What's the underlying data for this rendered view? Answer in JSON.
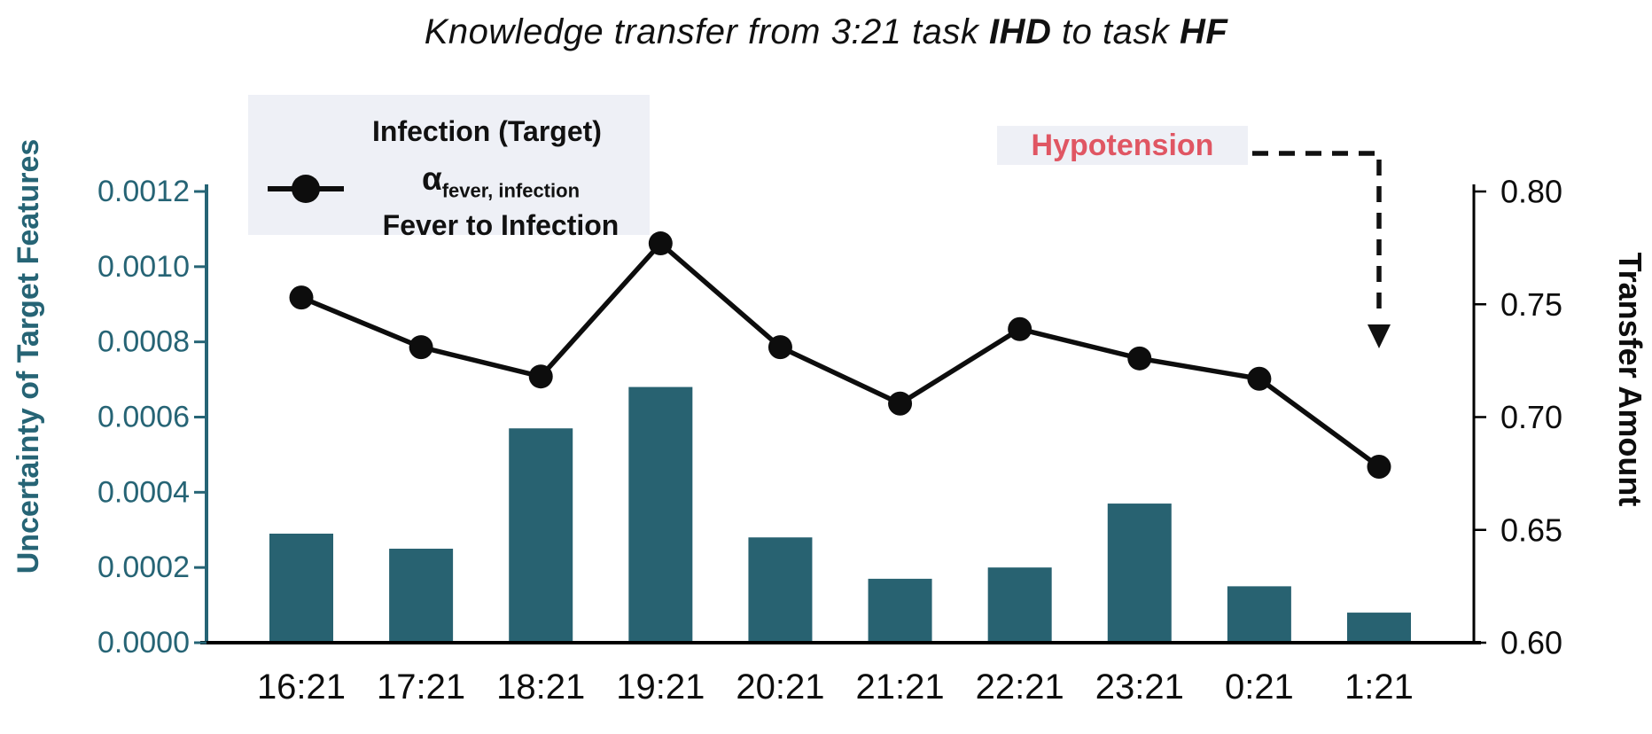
{
  "title": {
    "part1": "Knowledge transfer from 3:21 task ",
    "source_task": "IHD",
    "part2": " to task ",
    "target_task": "HF"
  },
  "legend": {
    "bar_label": "Infection (Target)",
    "alpha_symbol": "α",
    "alpha_subscript": "fever, infection",
    "line_label": "Fever to Infection"
  },
  "annotation": {
    "label": "Hypotension",
    "points_to_category": "1:21"
  },
  "colors": {
    "bar": "#286271",
    "axis_teal": "#266475",
    "line": "#0d0d0d",
    "annotation_text": "#e05663",
    "panel_bg": "#eef0f6"
  },
  "chart_data": {
    "type": "bar",
    "subtype": "combo-bar-line-dual-axis",
    "title": "Knowledge transfer from 3:21 task IHD to task HF",
    "categories": [
      "16:21",
      "17:21",
      "18:21",
      "19:21",
      "20:21",
      "21:21",
      "22:21",
      "23:21",
      "0:21",
      "1:21"
    ],
    "series": [
      {
        "name": "Infection (Target)",
        "type": "bar",
        "axis": "left",
        "values": [
          0.00029,
          0.00025,
          0.00057,
          0.00068,
          0.00028,
          0.00017,
          0.0002,
          0.00037,
          0.00015,
          8e-05
        ]
      },
      {
        "name": "α fever, infection — Fever to Infection",
        "type": "line",
        "axis": "right",
        "values": [
          0.753,
          0.731,
          0.718,
          0.777,
          0.731,
          0.706,
          0.739,
          0.726,
          0.717,
          0.678
        ]
      }
    ],
    "left_axis": {
      "label": "Uncertainty of Target Features",
      "min": 0.0,
      "max": 0.0012,
      "ticks": [
        {
          "value": 0.0,
          "label": "0.0000"
        },
        {
          "value": 0.0002,
          "label": "0.0002"
        },
        {
          "value": 0.0004,
          "label": "0.0004"
        },
        {
          "value": 0.0006,
          "label": "0.0006"
        },
        {
          "value": 0.0008,
          "label": "0.0008"
        },
        {
          "value": 0.001,
          "label": "0.0010"
        },
        {
          "value": 0.0012,
          "label": "0.0012"
        }
      ]
    },
    "right_axis": {
      "label": "Transfer Amount",
      "min": 0.6,
      "max": 0.8,
      "ticks": [
        {
          "value": 0.6,
          "label": "0.60"
        },
        {
          "value": 0.65,
          "label": "0.65"
        },
        {
          "value": 0.7,
          "label": "0.70"
        },
        {
          "value": 0.75,
          "label": "0.75"
        },
        {
          "value": 0.8,
          "label": "0.80"
        }
      ]
    },
    "grid": false,
    "legend_position": "upper-left-inside",
    "annotation": {
      "text": "Hypotension",
      "target_category": "1:21",
      "arrow": "dashed-elbow-down"
    }
  }
}
